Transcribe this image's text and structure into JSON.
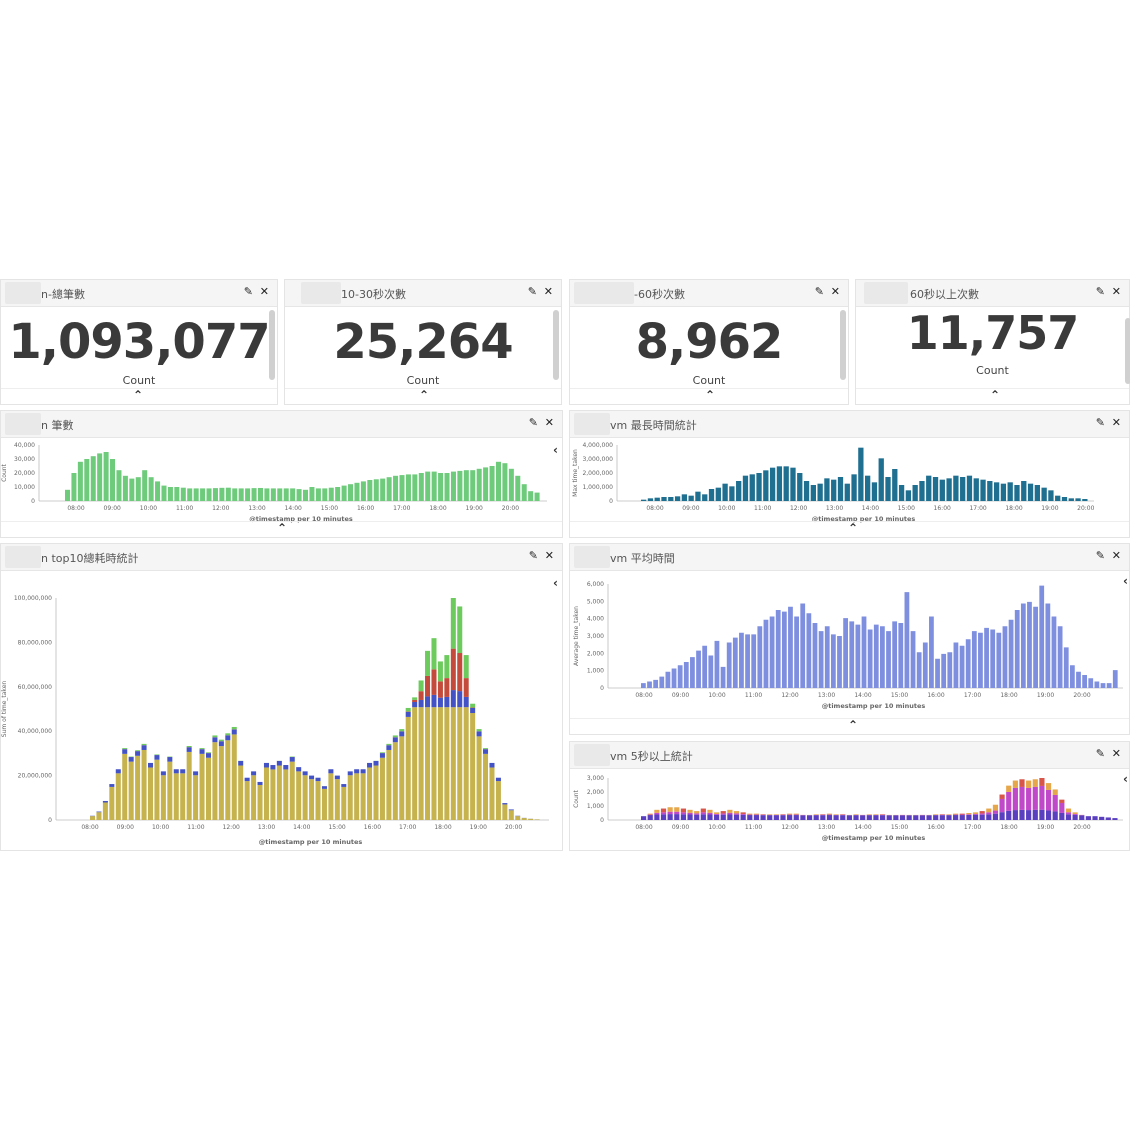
{
  "icons": {
    "edit": "pencil-icon",
    "close": "close-icon",
    "collapse": "chevron-up-icon",
    "legend": "chevron-left-icon"
  },
  "metrics": [
    {
      "title": "n-總筆數",
      "value": "1,093,077",
      "label": "Count"
    },
    {
      "title": "10-30秒次數",
      "value": "25,264",
      "label": "Count"
    },
    {
      "title": "-60秒次數",
      "value": "8,962",
      "label": "Count"
    },
    {
      "title": "60秒以上次數",
      "value": "11,757",
      "label": "Count"
    }
  ],
  "charts": [
    {
      "title": "n 筆數",
      "type": "bar",
      "color": "#6dcb7b",
      "xlabel": "@timestamp per 10 minutes",
      "ylabel": "Count",
      "ylim": [
        0,
        40000
      ],
      "yticks": [
        "40,000",
        "30,000",
        "20,000",
        "10,000",
        "0"
      ],
      "xticks": [
        "08:00",
        "09:00",
        "10:00",
        "11:00",
        "12:00",
        "13:00",
        "14:00",
        "15:00",
        "16:00",
        "17:00",
        "18:00",
        "19:00",
        "20:00"
      ],
      "values": [
        8000,
        20000,
        28000,
        30000,
        32000,
        34000,
        35000,
        30000,
        22000,
        18000,
        16000,
        17000,
        22000,
        17000,
        14000,
        11000,
        10000,
        10000,
        9500,
        9000,
        9000,
        9000,
        9000,
        9200,
        9400,
        9500,
        9000,
        9000,
        9000,
        9200,
        9300,
        9000,
        9000,
        9000,
        9000,
        9000,
        8500,
        8000,
        10000,
        9000,
        9000,
        9500,
        10000,
        11000,
        12000,
        13000,
        14000,
        15000,
        15500,
        16000,
        17000,
        18000,
        18500,
        19000,
        19000,
        20000,
        21000,
        21000,
        20000,
        20000,
        21000,
        21500,
        22000,
        22000,
        23000,
        24000,
        25000,
        28000,
        27000,
        23000,
        18000,
        12000,
        7000,
        6000
      ]
    },
    {
      "title": "vm 最長時間統計",
      "type": "bar",
      "color": "#1f6f90",
      "xlabel": "@timestamp per 10 minutes",
      "ylabel": "Max time_taken",
      "ylim": [
        0,
        4200000
      ],
      "yticks": [
        "4,000,000",
        "3,000,000",
        "2,000,000",
        "1,000,000",
        "0"
      ],
      "xticks": [
        "08:00",
        "09:00",
        "10:00",
        "11:00",
        "12:00",
        "13:00",
        "14:00",
        "15:00",
        "16:00",
        "17:00",
        "18:00",
        "19:00",
        "20:00"
      ],
      "values": [
        100000,
        200000,
        250000,
        300000,
        300000,
        350000,
        500000,
        400000,
        700000,
        500000,
        900000,
        1000000,
        1300000,
        1100000,
        1500000,
        1900000,
        2000000,
        2100000,
        2300000,
        2500000,
        2600000,
        2600000,
        2500000,
        2100000,
        1500000,
        1200000,
        1300000,
        1700000,
        1600000,
        1800000,
        1300000,
        2000000,
        4000000,
        1900000,
        1400000,
        3200000,
        1800000,
        2400000,
        1200000,
        800000,
        1200000,
        1500000,
        1900000,
        1800000,
        1600000,
        1700000,
        1900000,
        1800000,
        1900000,
        1700000,
        1600000,
        1500000,
        1400000,
        1300000,
        1400000,
        1200000,
        1500000,
        1300000,
        1200000,
        1000000,
        800000,
        400000,
        300000,
        200000,
        200000,
        150000
      ]
    },
    {
      "title": "n top10總耗時統計",
      "type": "bar",
      "colors": {
        "base": "#c6b34e",
        "blue": "#4352c4",
        "red": "#c44b3b",
        "green": "#6dcb5e",
        "cyan": "#3fb7c2"
      },
      "xlabel": "@timestamp per 10 minutes",
      "ylabel": "Sum of time_taken",
      "ylim": [
        0,
        105000000
      ],
      "yticks": [
        "100,000,000",
        "80,000,000",
        "60,000,000",
        "40,000,000",
        "20,000,000",
        "0"
      ],
      "xticks": [
        "08:00",
        "09:00",
        "10:00",
        "11:00",
        "12:00",
        "13:00",
        "14:00",
        "15:00",
        "16:00",
        "17:00",
        "18:00",
        "19:00",
        "20:00"
      ],
      "values": [
        2000000,
        4000000,
        9000000,
        17000000,
        24000000,
        34000000,
        30000000,
        33000000,
        36000000,
        27000000,
        31000000,
        23000000,
        30000000,
        24000000,
        24000000,
        35000000,
        23000000,
        34000000,
        32000000,
        40000000,
        38000000,
        41000000,
        44000000,
        28000000,
        20000000,
        23000000,
        18000000,
        27000000,
        26000000,
        28000000,
        26000000,
        30000000,
        25000000,
        23000000,
        21000000,
        20000000,
        16000000,
        24000000,
        21000000,
        17000000,
        23000000,
        24000000,
        24000000,
        27000000,
        28000000,
        32000000,
        36000000,
        40000000,
        43000000,
        53000000,
        58000000,
        66000000,
        80000000,
        86000000,
        75000000,
        78000000,
        105000000,
        101000000,
        78000000,
        55000000,
        43000000,
        34000000,
        27000000,
        20000000,
        8000000,
        5000000,
        2000000,
        1000000,
        600000,
        300000
      ]
    },
    {
      "title": "vm 平均時間",
      "type": "bar",
      "color": "#7f8fdf",
      "xlabel": "@timestamp per 10 minutes",
      "ylabel": "Average time_taken",
      "ylim": [
        0,
        6400
      ],
      "yticks": [
        "6,000",
        "5,000",
        "4,000",
        "3,000",
        "2,000",
        "1,000",
        "0"
      ],
      "xticks": [
        "08:00",
        "09:00",
        "10:00",
        "11:00",
        "12:00",
        "13:00",
        "14:00",
        "15:00",
        "16:00",
        "17:00",
        "18:00",
        "19:00",
        "20:00"
      ],
      "values": [
        300,
        400,
        500,
        700,
        1000,
        1200,
        1400,
        1600,
        1900,
        2300,
        2600,
        2000,
        2900,
        1300,
        2800,
        3100,
        3400,
        3300,
        3300,
        3800,
        4200,
        4400,
        4800,
        4700,
        5000,
        4400,
        5200,
        4600,
        4000,
        3500,
        3800,
        3300,
        3200,
        4300,
        4100,
        3900,
        4400,
        3600,
        3900,
        3800,
        3500,
        4100,
        4000,
        5900,
        3500,
        2200,
        2800,
        4400,
        1800,
        2100,
        2200,
        2800,
        2600,
        3000,
        3500,
        3400,
        3700,
        3600,
        3400,
        3800,
        4200,
        4800,
        5200,
        5300,
        5000,
        6300,
        5200,
        4400,
        3800,
        2500,
        1400,
        1000,
        800,
        600,
        400,
        300,
        300,
        1100
      ]
    },
    {
      "title": "vm 5秒以上統計",
      "type": "bar",
      "colors": {
        "purple": "#5a3fc0",
        "magenta": "#c049c9",
        "orange": "#e6a64a",
        "red": "#d8554a"
      },
      "xlabel": "@timestamp per 10 minutes",
      "ylabel": "Count",
      "ylim": [
        0,
        3300
      ],
      "yticks": [
        "3,000",
        "2,000",
        "1,000",
        "0"
      ],
      "xticks": [
        "08:00",
        "09:00",
        "10:00",
        "11:00",
        "12:00",
        "13:00",
        "14:00",
        "15:00",
        "16:00",
        "17:00",
        "18:00",
        "19:00",
        "20:00"
      ],
      "values": [
        300,
        500,
        800,
        900,
        1000,
        1000,
        900,
        800,
        700,
        900,
        800,
        600,
        700,
        800,
        700,
        600,
        500,
        500,
        450,
        450,
        450,
        450,
        500,
        500,
        400,
        400,
        450,
        450,
        500,
        450,
        450,
        400,
        450,
        400,
        450,
        450,
        450,
        400,
        400,
        400,
        400,
        400,
        400,
        400,
        450,
        450,
        450,
        500,
        500,
        550,
        600,
        700,
        900,
        1200,
        2000,
        2700,
        3100,
        3200,
        3100,
        3200,
        3300,
        2900,
        2400,
        1600,
        900,
        600,
        400,
        300,
        300,
        250,
        200,
        150
      ]
    }
  ]
}
